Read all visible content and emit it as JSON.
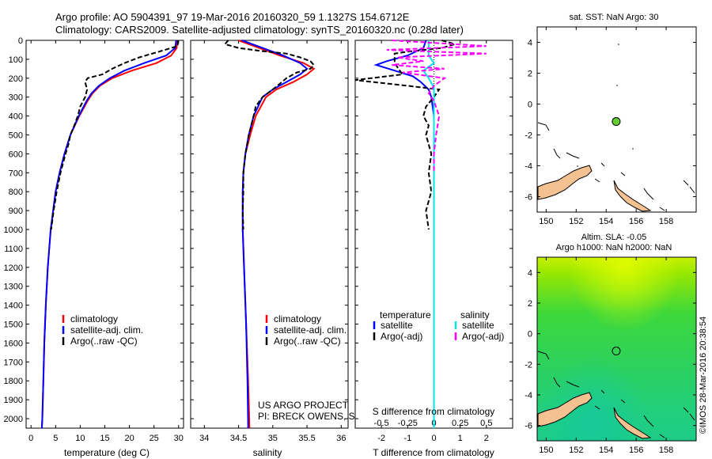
{
  "header": {
    "line1": "Argo profile: AO 5904391_97 19-Mar-2016 20160320_59 1.1327S 154.6712E",
    "line2": "Climatology: CARS2009. Satellite-adjusted climatology: synTS_20160320.nc (0.28d later)"
  },
  "colors": {
    "climatology": "#ff0000",
    "satellite": "#0000ff",
    "argo": "#000000",
    "sal_satellite": "#00e5ee",
    "sal_argo": "#ff00ff",
    "land": "#f4c190",
    "argo_marker": "#66cc33"
  },
  "depth_ticks": [
    0,
    100,
    200,
    300,
    400,
    500,
    600,
    700,
    800,
    900,
    1000,
    1100,
    1200,
    1300,
    1400,
    1500,
    1600,
    1700,
    1800,
    1900,
    2000
  ],
  "credit": {
    "line1": "US ARGO PROJECT",
    "line2": "PI: BRECK OWENS, STEVE JAYNE, P.E. ROBBINS"
  },
  "stamp": "©IMOS 28-Mar-2016 20:38:54",
  "chart_data": [
    {
      "type": "line",
      "id": "temperature",
      "xlabel": "temperature (deg C)",
      "ylim": [
        2050,
        0
      ],
      "xlim": [
        -1,
        31
      ],
      "xticks": [
        0,
        5,
        10,
        15,
        20,
        25,
        30
      ],
      "legend": [
        "climatology",
        "satellite-adj. clim.",
        "Argo(..raw -QC)"
      ],
      "series": [
        {
          "name": "climatology",
          "color": "#ff0000",
          "depth": [
            0,
            40,
            80,
            120,
            160,
            200,
            240,
            280,
            320,
            400,
            500,
            600,
            700,
            800,
            900,
            1000,
            1200,
            1400,
            1600,
            1800,
            2000,
            2050
          ],
          "values": [
            29.8,
            29.6,
            28.5,
            25.5,
            20.5,
            16.5,
            14.0,
            12.5,
            11.5,
            9.8,
            8.0,
            6.8,
            5.8,
            5.0,
            4.5,
            4.0,
            3.4,
            3.0,
            2.7,
            2.5,
            2.3,
            2.2
          ]
        },
        {
          "name": "satellite-adj. clim.",
          "color": "#0000ff",
          "depth": [
            0,
            40,
            80,
            120,
            160,
            200,
            240,
            280,
            320,
            400,
            500,
            600,
            700,
            800,
            900,
            1000,
            1200,
            1400,
            1600,
            1800,
            2000,
            2050
          ],
          "values": [
            29.5,
            29.3,
            27.5,
            23.0,
            19.0,
            16.0,
            13.8,
            12.3,
            11.3,
            9.7,
            8.0,
            6.8,
            5.8,
            5.0,
            4.5,
            4.0,
            3.4,
            3.0,
            2.7,
            2.5,
            2.3,
            2.2
          ]
        },
        {
          "name": "Argo(..raw -QC)",
          "color": "#000000",
          "dashed": true,
          "depth": [
            0,
            30,
            60,
            90,
            120,
            150,
            180,
            200,
            220,
            260,
            300,
            350,
            400,
            450,
            500,
            550,
            600,
            700,
            800,
            900,
            1000
          ],
          "values": [
            29.9,
            29.8,
            26.0,
            22.0,
            19.0,
            16.5,
            14.5,
            11.5,
            11.0,
            11.4,
            11.0,
            10.0,
            9.5,
            8.8,
            8.0,
            7.6,
            7.0,
            6.0,
            5.2,
            4.6,
            4.1
          ]
        }
      ]
    },
    {
      "type": "line",
      "id": "salinity",
      "xlabel": "salinity",
      "ylim": [
        2050,
        0
      ],
      "xlim": [
        33.8,
        36.1
      ],
      "xticks": [
        34,
        34.5,
        35,
        35.5,
        36
      ],
      "legend": [
        "climatology",
        "satellite-adj. clim.",
        "Argo(..raw -QC)"
      ],
      "series": [
        {
          "name": "climatology",
          "color": "#ff0000",
          "depth": [
            0,
            40,
            80,
            120,
            150,
            180,
            220,
            260,
            300,
            400,
            500,
            600,
            700,
            800,
            1000,
            1200,
            1500,
            1800,
            2050
          ],
          "values": [
            34.5,
            34.8,
            35.1,
            35.45,
            35.6,
            35.5,
            35.3,
            35.05,
            34.9,
            34.75,
            34.67,
            34.6,
            34.57,
            34.56,
            34.56,
            34.58,
            34.61,
            34.64,
            34.66
          ]
        },
        {
          "name": "satellite-adj. clim.",
          "color": "#0000ff",
          "depth": [
            0,
            40,
            80,
            120,
            150,
            180,
            220,
            260,
            300,
            400,
            500,
            600,
            700,
            800,
            1000,
            1200,
            1500,
            1800,
            2050
          ],
          "values": [
            34.55,
            34.85,
            35.15,
            35.4,
            35.5,
            35.4,
            35.2,
            35.0,
            34.85,
            34.72,
            34.65,
            34.6,
            34.57,
            34.56,
            34.56,
            34.58,
            34.61,
            34.63,
            34.64
          ]
        },
        {
          "name": "Argo(..raw -QC)",
          "color": "#000000",
          "dashed": true,
          "depth": [
            0,
            20,
            40,
            55,
            70,
            90,
            110,
            130,
            150,
            170,
            200,
            230,
            260,
            300,
            350,
            400,
            500,
            600,
            700,
            800,
            900,
            1000
          ],
          "values": [
            34.35,
            34.3,
            34.5,
            34.8,
            35.2,
            35.4,
            35.55,
            35.6,
            35.55,
            35.35,
            35.2,
            35.1,
            35.0,
            34.85,
            34.75,
            34.72,
            34.65,
            34.6,
            34.57,
            34.57,
            34.56,
            34.57
          ]
        }
      ]
    },
    {
      "type": "line",
      "id": "differences",
      "xlabel": "T difference from climatology",
      "xlabel_top": "S difference from climatology",
      "ylim": [
        2050,
        0
      ],
      "xlim": [
        -3,
        3
      ],
      "xticks": [
        -2,
        -1,
        0,
        1,
        2
      ],
      "top_ticks": [
        -0.5,
        -0.25,
        0,
        0.25,
        0.5
      ],
      "legend": {
        "col1_title": "temperature",
        "col2_title": "salinity",
        "items": [
          "satellite",
          "Argo(-adj)",
          "satellite",
          "Argo(-adj)"
        ]
      },
      "series": [
        {
          "name": "satellite",
          "group": "temperature",
          "color": "#0000ff",
          "depth": [
            0,
            40,
            80,
            110,
            130,
            160,
            190,
            220,
            260,
            300,
            400,
            600,
            800,
            1000,
            1500,
            2050
          ],
          "values": [
            -0.3,
            -0.4,
            -1.0,
            -1.8,
            -2.2,
            -1.5,
            -0.8,
            -0.5,
            -0.2,
            -0.1,
            0.0,
            0.0,
            0.0,
            0.0,
            0.0,
            0.0
          ]
        },
        {
          "name": "Argo(-adj)",
          "group": "temperature",
          "color": "#000000",
          "dashed": true,
          "depth": [
            0,
            20,
            40,
            60,
            70,
            120,
            180,
            210,
            240,
            260,
            300,
            350,
            400,
            450,
            500,
            600,
            700,
            800,
            900,
            1000
          ],
          "values": [
            0.3,
            0.8,
            0.3,
            -1.0,
            -1.5,
            -1.5,
            -1.2,
            -3.0,
            -1.0,
            0.2,
            0.0,
            -0.3,
            -0.4,
            -0.2,
            -0.3,
            -0.1,
            -0.2,
            -0.1,
            -0.3,
            -0.2
          ]
        },
        {
          "name": "satellite",
          "group": "salinity",
          "color": "#00e5ee",
          "depth": [
            0,
            40,
            80,
            120,
            160,
            200,
            250,
            300,
            400,
            600,
            800,
            1000,
            1500,
            2050
          ],
          "values": [
            -0.05,
            -0.05,
            -0.05,
            0.0,
            -0.1,
            -0.05,
            0.0,
            0.0,
            0.0,
            0.0,
            0.0,
            0.0,
            0.0,
            0.0
          ]
        },
        {
          "name": "Argo(-adj)",
          "group": "salinity",
          "color": "#ff00ff",
          "dashed": true,
          "depth": [
            0,
            30,
            50,
            70,
            90,
            110,
            130,
            150,
            170,
            200,
            240,
            280,
            320,
            400,
            500,
            600,
            700
          ],
          "values": [
            -0.4,
            0.5,
            -0.45,
            0.5,
            -0.35,
            -0.1,
            -0.4,
            0.1,
            -0.3,
            0.1,
            0.0,
            -0.05,
            0.0,
            0.05,
            0.02,
            0.0,
            0.0
          ]
        }
      ]
    },
    {
      "type": "scatter",
      "id": "sst_map",
      "title": "sat. SST: NaN Argo: 30",
      "xlim": [
        149.4,
        160
      ],
      "ylim": [
        -7,
        5
      ],
      "xticks": [
        150,
        152,
        154,
        156,
        158
      ],
      "yticks": [
        -6,
        -4,
        -2,
        0,
        2,
        4
      ],
      "argo": {
        "lon": 154.67,
        "lat": -1.13
      }
    },
    {
      "type": "heatmap",
      "id": "sla_map",
      "title_line1": "Altim. SLA: -0.05",
      "title_line2": "Argo h1000: NaN h2000: NaN",
      "xlim": [
        149.4,
        160
      ],
      "ylim": [
        -7,
        5
      ],
      "xticks": [
        150,
        152,
        154,
        156,
        158
      ],
      "yticks": [
        -6,
        -4,
        -2,
        0,
        2,
        4
      ],
      "argo": {
        "lon": 154.67,
        "lat": -1.13
      }
    }
  ]
}
